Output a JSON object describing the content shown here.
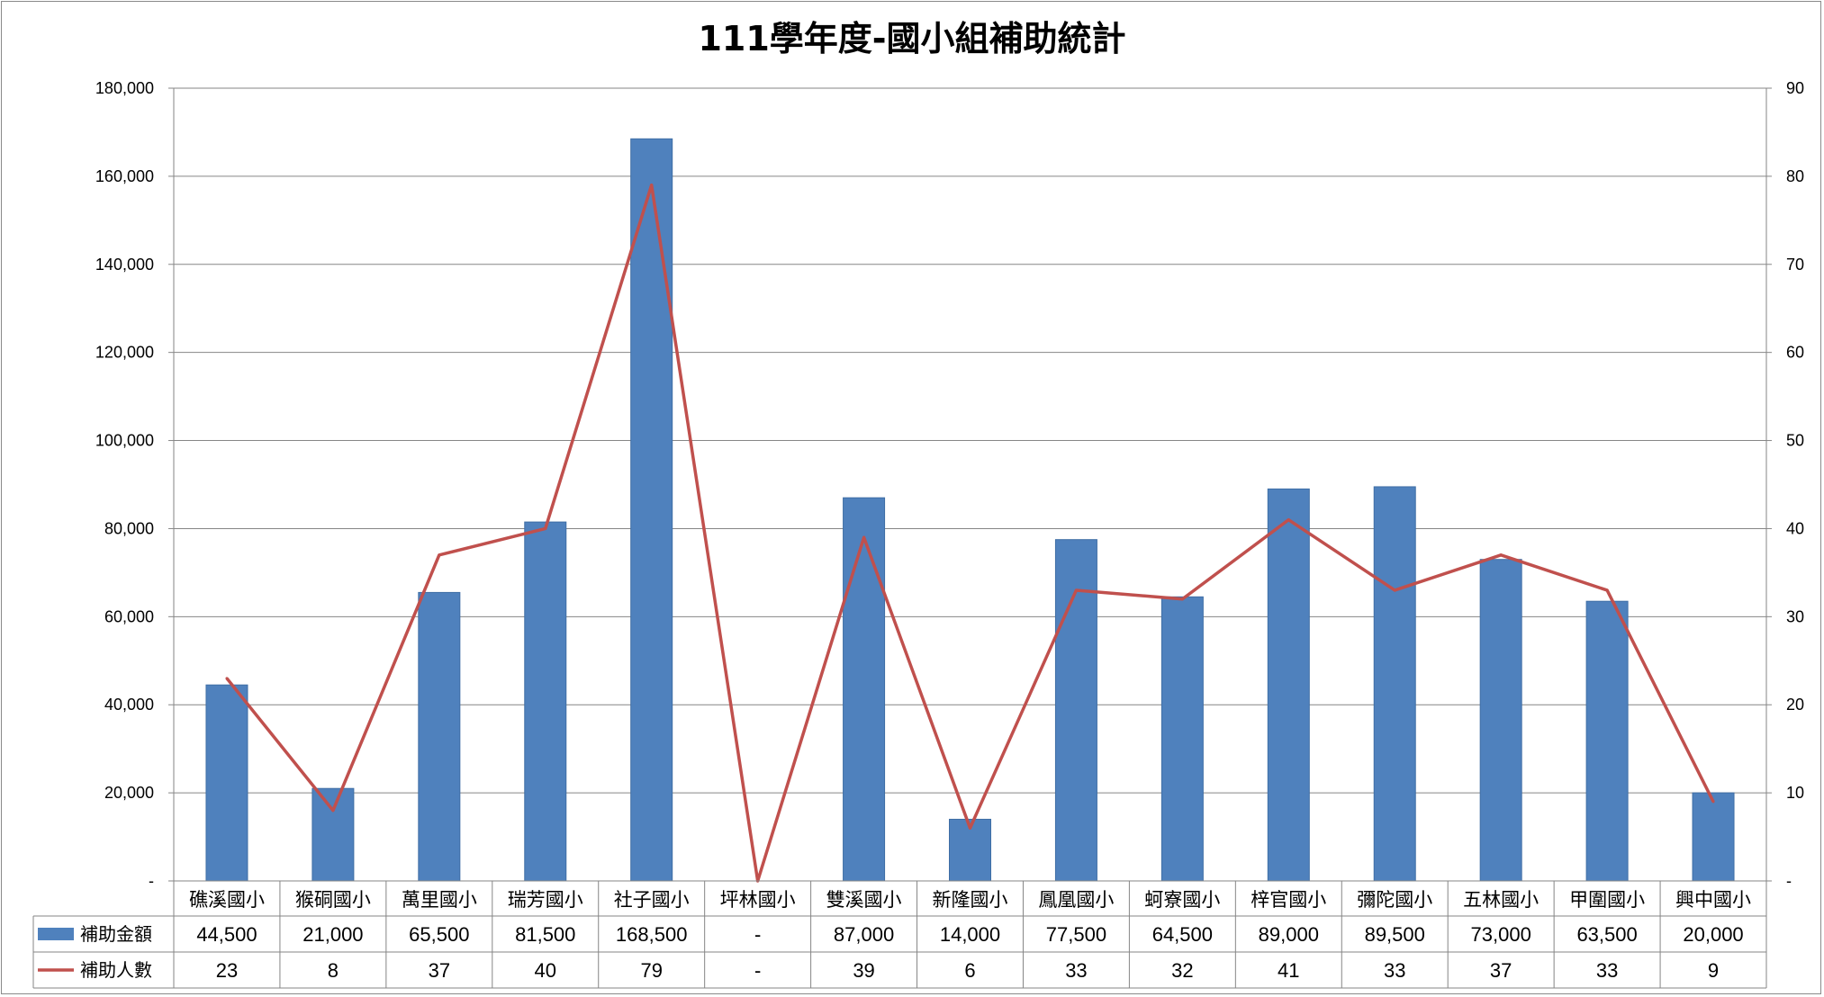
{
  "chart_data": {
    "type": "bar",
    "title": "111學年度-國小組補助統計",
    "categories": [
      "礁溪國小",
      "猴硐國小",
      "萬里國小",
      "瑞芳國小",
      "社子國小",
      "坪林國小",
      "雙溪國小",
      "新隆國小",
      "鳳凰國小",
      "蚵寮國小",
      "梓官國小",
      "彌陀國小",
      "五林國小",
      "甲圍國小",
      "興中國小"
    ],
    "series": [
      {
        "name": "補助金額",
        "type": "bar",
        "axis": "left",
        "color": "#4f81bd",
        "values": [
          44500,
          21000,
          65500,
          81500,
          168500,
          null,
          87000,
          14000,
          77500,
          64500,
          89000,
          89500,
          73000,
          63500,
          20000
        ],
        "display": [
          "44,500",
          "21,000",
          "65,500",
          "81,500",
          "168,500",
          "-",
          "87,000",
          "14,000",
          "77,500",
          "64,500",
          "89,000",
          "89,500",
          "73,000",
          "63,500",
          "20,000"
        ]
      },
      {
        "name": "補助人數",
        "type": "line",
        "axis": "right",
        "color": "#c0504d",
        "values": [
          23,
          8,
          37,
          40,
          79,
          null,
          39,
          6,
          33,
          32,
          41,
          33,
          37,
          33,
          9
        ],
        "display": [
          "23",
          "8",
          "37",
          "40",
          "79",
          "-",
          "39",
          "6",
          "33",
          "32",
          "41",
          "33",
          "37",
          "33",
          "9"
        ]
      }
    ],
    "y_left": {
      "range": [
        0,
        180000
      ],
      "ticks": [
        "-",
        "20,000",
        "40,000",
        "60,000",
        "80,000",
        "100,000",
        "120,000",
        "140,000",
        "160,000",
        "180,000"
      ]
    },
    "y_right": {
      "range": [
        0,
        90
      ],
      "ticks": [
        "-",
        "10",
        "20",
        "30",
        "40",
        "50",
        "60",
        "70",
        "80",
        "90"
      ]
    },
    "grid": true,
    "legend": "data-table-left"
  }
}
